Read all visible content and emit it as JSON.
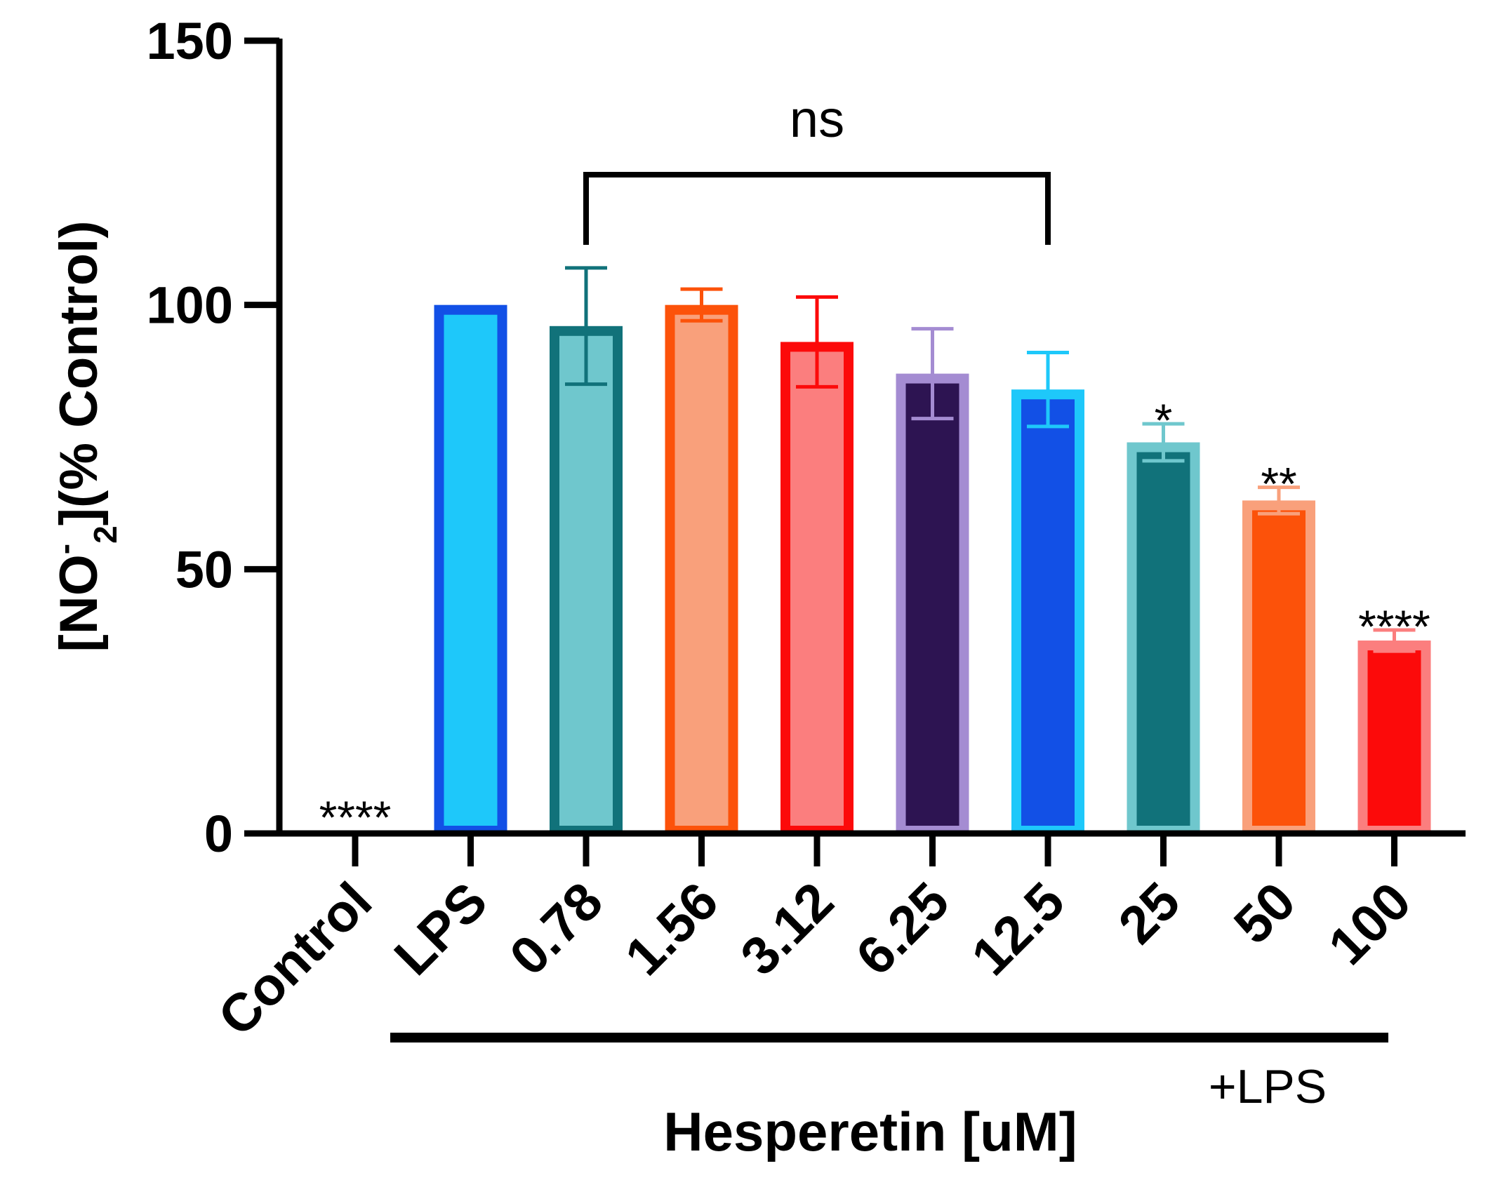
{
  "chart_data": {
    "type": "bar",
    "title": "",
    "ylabel_parts": {
      "open": "[NO",
      "sup": "-",
      "sub": "2",
      "close": "](% Control)"
    },
    "xlabel": "Hesperetin [uM]",
    "group_label": "+LPS",
    "ylim": [
      0,
      150
    ],
    "yticks": [
      "0",
      "50",
      "100",
      "150"
    ],
    "categories": [
      "Control",
      "LPS",
      "0.78",
      "1.56",
      "3.12",
      "6.25",
      "12.5",
      "25",
      "50",
      "100"
    ],
    "values": [
      0,
      100,
      96,
      100,
      93,
      87,
      84,
      74,
      63,
      36.5
    ],
    "error": [
      0,
      0,
      11,
      3,
      8.5,
      8.5,
      7,
      3.5,
      2.5,
      2
    ],
    "significance": [
      "****",
      "",
      "",
      "",
      "",
      "",
      "",
      "*",
      "**",
      "****"
    ],
    "bracket": {
      "from_index": 2,
      "to_index": 6,
      "label": "ns"
    },
    "colors": {
      "fill": [
        "#ffffff",
        "#1ec8fa",
        "#6fc7cd",
        "#f9a07b",
        "#fb7e7e",
        "#2d1452",
        "#1250e6",
        "#11727a",
        "#fc520a",
        "#fc0a0a"
      ],
      "border": [
        "#ffffff",
        "#1250e6",
        "#11727a",
        "#fc520a",
        "#fc0a0a",
        "#a48cd2",
        "#1ec8fa",
        "#6fc7cd",
        "#f9a07b",
        "#fb7e7e"
      ]
    }
  }
}
